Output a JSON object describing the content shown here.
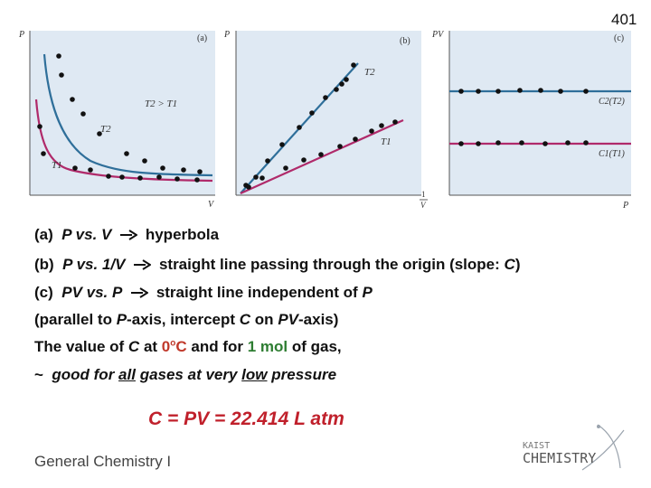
{
  "page_number": "401",
  "figure": {
    "panel_a": {
      "tag": "(a)",
      "y_axis": "P",
      "x_axis": "V",
      "curve_labels": [
        "T2",
        "T1"
      ],
      "relation_text": "T2 > T1",
      "colors": {
        "T2": "#2f6f9a",
        "T1": "#b02a6a",
        "bg": "#dfe9f3"
      }
    },
    "panel_b": {
      "tag": "(b)",
      "y_axis": "P",
      "x_axis_num": "1",
      "x_axis_den": "V",
      "curve_labels": [
        "T2",
        "T1"
      ]
    },
    "panel_c": {
      "tag": "(c)",
      "y_axis": "PV",
      "x_axis": "P",
      "line_labels": [
        "C2(T2)",
        "C1(T1)"
      ]
    }
  },
  "text": {
    "a_prefix": "(a)",
    "a_var": "P vs. V",
    "a_result": "hyperbola",
    "b_prefix": "(b)",
    "b_var": "P vs. 1/V",
    "b_result": "straight line passing through the origin (slope:",
    "b_C": "C",
    "b_close": ")",
    "c_prefix": "(c)",
    "c_var": "PV vs. P",
    "c_result": "straight line independent of",
    "c_P": "P",
    "d_open": "(parallel to",
    "d_P": "P",
    "d_mid": "-axis, intercept",
    "d_C": "C",
    "d_on": "on",
    "d_PV": "PV",
    "d_close": "-axis)",
    "e_pre": "The value of",
    "e_C": "C",
    "e_at": "at",
    "e_temp": "0",
    "e_deg": "o",
    "e_Cunit": "C",
    "e_and": "and for",
    "e_mol": "1 mol",
    "e_post": "of gas,",
    "f_tilde": "~",
    "f_good": "good for",
    "f_all": "all",
    "f_mid": "gases at very",
    "f_low": "low",
    "f_pressure": "pressure"
  },
  "equation": "C = PV = 22.414 L atm",
  "footer": "General Chemistry I",
  "logo": {
    "line1": "KAIST",
    "line2": "CHEMISTRY"
  }
}
